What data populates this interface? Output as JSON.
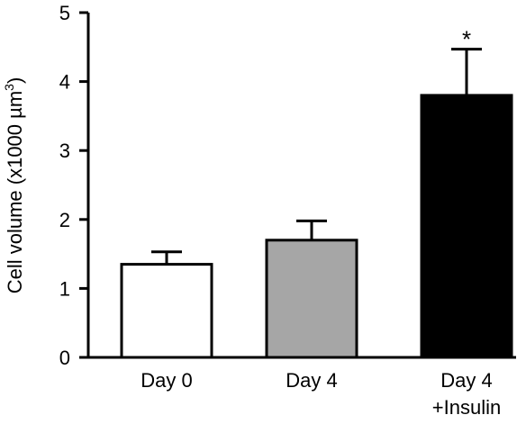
{
  "chart_data": {
    "type": "bar",
    "categories": [
      "Day 0",
      "Day 4",
      "Day 4"
    ],
    "category_sublabels": [
      "",
      "",
      "+Insulin"
    ],
    "values": [
      1.35,
      1.7,
      3.8
    ],
    "errors": [
      0.18,
      0.28,
      0.67
    ],
    "bar_colors": [
      "#ffffff",
      "#a6a6a6",
      "#000000"
    ],
    "annotations": [
      "",
      "",
      "*"
    ],
    "ylabel": "Cell volume (x1000 µm",
    "ylabel_superscript": "3",
    "ylabel_close": ")",
    "ylim": [
      0,
      5
    ],
    "yticks": [
      "0",
      "1",
      "2",
      "3",
      "4",
      "5"
    ],
    "grid": false
  }
}
